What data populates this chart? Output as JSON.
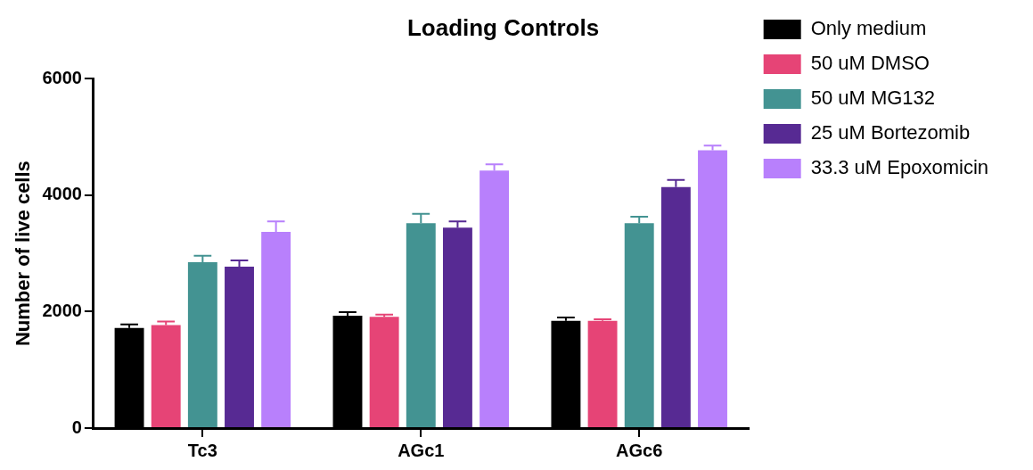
{
  "chart_data": {
    "type": "bar",
    "title": "Loading Controls",
    "ylabel": "Number of live cells",
    "categories": [
      "Tc3",
      "AGc1",
      "AGc6"
    ],
    "ylim": [
      0,
      6000
    ],
    "yticks": [
      0,
      2000,
      4000,
      6000
    ],
    "grid": false,
    "legend": "right",
    "series": [
      {
        "name": "Only medium",
        "color": "#000000",
        "values": [
          1720,
          1930,
          1840
        ],
        "errors": [
          [
            1720,
            1780
          ],
          [
            1930,
            1990
          ],
          [
            1840,
            1900
          ]
        ]
      },
      {
        "name": "50 uM DMSO",
        "color": "#e64476",
        "values": [
          1770,
          1910,
          1840
        ],
        "errors": [
          [
            1770,
            1830
          ],
          [
            1910,
            1950
          ],
          [
            1840,
            1870
          ]
        ]
      },
      {
        "name": "50 uM MG132",
        "color": "#439392",
        "values": [
          2850,
          3520,
          3520
        ],
        "errors": [
          [
            2850,
            2960
          ],
          [
            3520,
            3680
          ],
          [
            3520,
            3630
          ]
        ]
      },
      {
        "name": "25 uM Bortezomib",
        "color": "#572a93",
        "values": [
          2770,
          3440,
          4140
        ],
        "errors": [
          [
            2770,
            2880
          ],
          [
            3440,
            3550
          ],
          [
            4140,
            4260
          ]
        ]
      },
      {
        "name": "33.3 uM Epoxomicin",
        "color": "#b880fc",
        "values": [
          3370,
          4420,
          4770
        ],
        "errors": [
          [
            3370,
            3550
          ],
          [
            4420,
            4530
          ],
          [
            4770,
            4850
          ]
        ]
      }
    ]
  }
}
